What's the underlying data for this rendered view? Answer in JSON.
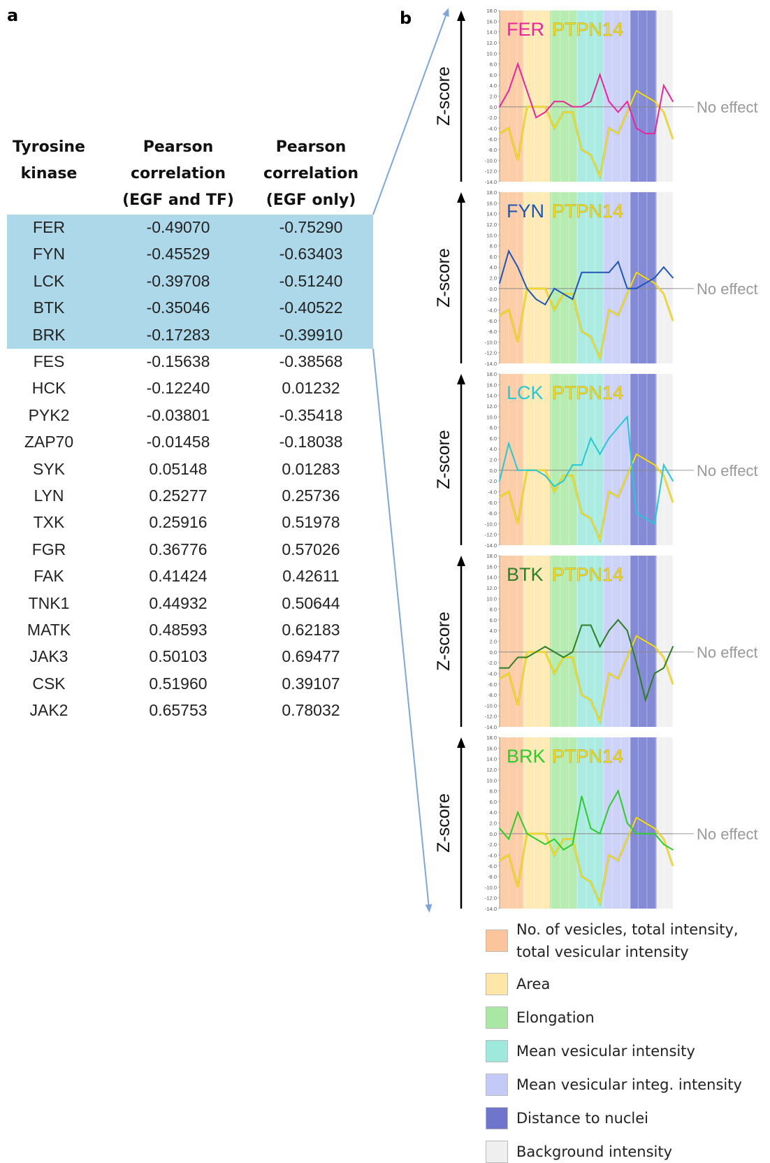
{
  "panel_a_label": "a",
  "panel_b_label": "b",
  "table": {
    "headers": [
      {
        "line1": "Tyrosine",
        "line2": "kinase",
        "line3": ""
      },
      {
        "line1": "Pearson",
        "line2": "correlation",
        "line3": "(EGF and TF)"
      },
      {
        "line1": "Pearson",
        "line2": "correlation",
        "line3": "(EGF only)"
      }
    ],
    "highlight_color": "#add8ea",
    "rows": [
      [
        "FER",
        "-0.49070",
        "-0.75290"
      ],
      [
        "FYN",
        "-0.45529",
        "-0.63403"
      ],
      [
        "LCK",
        "-0.39708",
        "-0.51240"
      ],
      [
        "BTK",
        "-0.35046",
        "-0.40522"
      ],
      [
        "BRK",
        "-0.17283",
        "-0.39910"
      ],
      [
        "FES",
        "-0.15638",
        "-0.38568"
      ],
      [
        "HCK",
        "-0.12240",
        "0.01232"
      ],
      [
        "PYK2",
        "-0.03801",
        "-0.35418"
      ],
      [
        "ZAP70",
        "-0.01458",
        "-0.18038"
      ],
      [
        "SYK",
        "0.05148",
        "0.01283"
      ],
      [
        "LYN",
        "0.25277",
        "0.25736"
      ],
      [
        "TXK",
        "0.25916",
        "0.51978"
      ],
      [
        "FGR",
        "0.36776",
        "0.57026"
      ],
      [
        "FAK",
        "0.41424",
        "0.42611"
      ],
      [
        "TNK1",
        "0.44932",
        "0.50644"
      ],
      [
        "MATK",
        "0.48593",
        "0.62183"
      ],
      [
        "JAK3",
        "0.50103",
        "0.69477"
      ],
      [
        "CSK",
        "0.51960",
        "0.39107"
      ],
      [
        "JAK2",
        "0.65753",
        "0.78032"
      ]
    ]
  },
  "legend": [
    {
      "lines": [
        "No. of vesicles, total intensity,",
        "total vesicular intensity"
      ],
      "color": "#fbc49a"
    },
    {
      "lines": [
        "Area"
      ],
      "color": "#fde6a8"
    },
    {
      "lines": [
        "Elongation"
      ],
      "color": "#a9e8a4"
    },
    {
      "lines": [
        "Mean vesicular intensity"
      ],
      "color": "#9ee8dc"
    },
    {
      "lines": [
        "Mean vesicular integ. intensity"
      ],
      "color": "#c4caf7"
    },
    {
      "lines": [
        "Distance to nuclei"
      ],
      "color": "#7075cc"
    },
    {
      "lines": [
        "Background intensity"
      ],
      "color": "#efefef"
    }
  ],
  "chart_data": [
    {
      "type": "line",
      "kinase": "FER",
      "kinase_color": "#e8259b",
      "partner": "PTPN14",
      "partner_color": "#f7e11e",
      "ylabel": "Z-score",
      "annotation": "No effect",
      "ylim": [
        -14,
        18
      ],
      "yticks": [
        "18.0",
        "16.0",
        "14.0",
        "12.0",
        "10.0",
        "8.0",
        "6.0",
        "4.0",
        "2.0",
        "0.0",
        "-2.0",
        "-4.0",
        "-6.0",
        "-8.0",
        "-10.0",
        "-12.0",
        "-14.0"
      ],
      "kinase_values": [
        0,
        3,
        8,
        3,
        -2,
        -1,
        1,
        1,
        0,
        0,
        1,
        6,
        1,
        -1,
        1,
        -4,
        -5,
        -5,
        4,
        1
      ],
      "partner_values": [
        -5,
        -4,
        -10,
        0,
        0,
        0,
        -4,
        -1,
        -1,
        -8,
        -9,
        -13,
        -4,
        -5,
        -1,
        3,
        2,
        1,
        -1,
        -6
      ]
    },
    {
      "type": "line",
      "kinase": "FYN",
      "kinase_color": "#1f56b5",
      "partner": "PTPN14",
      "partner_color": "#f7e11e",
      "ylabel": "Z-score",
      "annotation": "No effect",
      "ylim": [
        -14,
        18
      ],
      "yticks": [
        "18.0",
        "16.0",
        "14.0",
        "12.0",
        "10.0",
        "8.0",
        "6.0",
        "4.0",
        "2.0",
        "0.0",
        "-2.0",
        "-4.0",
        "-6.0",
        "-8.0",
        "-10.0",
        "-12.0",
        "-14.0"
      ],
      "kinase_values": [
        1,
        7,
        4,
        0,
        -2,
        -3,
        0,
        -1,
        -2,
        3,
        3,
        3,
        3,
        5,
        0,
        0,
        1,
        2,
        4,
        2
      ],
      "partner_values": [
        -5,
        -4,
        -10,
        0,
        0,
        0,
        -4,
        -1,
        -1,
        -8,
        -9,
        -13,
        -4,
        -5,
        -1,
        3,
        2,
        1,
        -1,
        -6
      ]
    },
    {
      "type": "line",
      "kinase": "LCK",
      "kinase_color": "#25c8d6",
      "partner": "PTPN14",
      "partner_color": "#f7e11e",
      "ylabel": "Z-score",
      "annotation": "No effect",
      "ylim": [
        -14,
        18
      ],
      "yticks": [
        "18.0",
        "16.0",
        "14.0",
        "12.0",
        "10.0",
        "8.0",
        "6.0",
        "4.0",
        "2.0",
        "0.0",
        "-2.0",
        "-4.0",
        "-6.0",
        "-8.0",
        "-10.0",
        "-12.0",
        "-14.0"
      ],
      "kinase_values": [
        -2,
        5,
        0,
        0,
        0,
        -1,
        -3,
        -2,
        1,
        1,
        6,
        3,
        6,
        8,
        10,
        -8,
        -9,
        -10,
        1,
        -2
      ],
      "partner_values": [
        -5,
        -4,
        -10,
        0,
        0,
        0,
        -4,
        -1,
        -1,
        -8,
        -9,
        -13,
        -4,
        -5,
        -1,
        3,
        2,
        1,
        -1,
        -6
      ]
    },
    {
      "type": "line",
      "kinase": "BTK",
      "kinase_color": "#2e7d27",
      "partner": "PTPN14",
      "partner_color": "#f7e11e",
      "ylabel": "Z-score",
      "annotation": "No effect",
      "ylim": [
        -14,
        18
      ],
      "yticks": [
        "18.0",
        "16.0",
        "14.0",
        "12.0",
        "10.0",
        "8.0",
        "6.0",
        "4.0",
        "2.0",
        "0.0",
        "-2.0",
        "-4.0",
        "-6.0",
        "-8.0",
        "-10.0",
        "-12.0",
        "-14.0"
      ],
      "kinase_values": [
        -3,
        -3,
        -1,
        -1,
        0,
        1,
        0,
        -1,
        0,
        5,
        5,
        1,
        4,
        6,
        4,
        -2,
        -9,
        -4,
        -3,
        1
      ],
      "partner_values": [
        -5,
        -4,
        -10,
        0,
        0,
        0,
        -4,
        -1,
        -1,
        -8,
        -9,
        -13,
        -4,
        -5,
        -1,
        3,
        2,
        1,
        -1,
        -6
      ]
    },
    {
      "type": "line",
      "kinase": "BRK",
      "kinase_color": "#2dcc2b",
      "partner": "PTPN14",
      "partner_color": "#f7e11e",
      "ylabel": "Z-score",
      "annotation": "No effect",
      "ylim": [
        -14,
        18
      ],
      "yticks": [
        "18.0",
        "16.0",
        "14.0",
        "12.0",
        "10.0",
        "8.0",
        "6.0",
        "4.0",
        "2.0",
        "0.0",
        "-2.0",
        "-4.0",
        "-6.0",
        "-8.0",
        "-10.0",
        "-12.0",
        "-14.0"
      ],
      "kinase_values": [
        1,
        -1,
        4,
        0,
        -1,
        -2,
        -1,
        -3,
        -2,
        7,
        1,
        0,
        5,
        8,
        2,
        0,
        0,
        0,
        -2,
        -3
      ],
      "partner_values": [
        -5,
        -4,
        -10,
        0,
        0,
        0,
        -4,
        -1,
        -1,
        -8,
        -9,
        -13,
        -4,
        -5,
        -1,
        3,
        2,
        1,
        -1,
        -6
      ]
    }
  ]
}
